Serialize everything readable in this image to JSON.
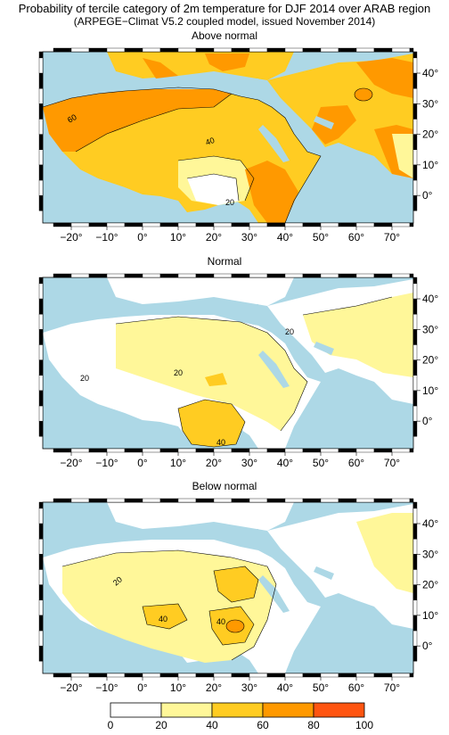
{
  "header": {
    "title": "Probability of tercile category of 2m temperature for DJF 2014 over ARAB region",
    "subtitle": "(ARPEGE−Climat V5.2 coupled model, issued November 2014)"
  },
  "panels": [
    {
      "title": "Above normal",
      "contour_labels": [
        "60",
        "40",
        "20"
      ]
    },
    {
      "title": "Normal",
      "contour_labels": [
        "20",
        "20",
        "20",
        "40"
      ]
    },
    {
      "title": "Below normal",
      "contour_labels": [
        "20",
        "40",
        "40"
      ]
    }
  ],
  "axes": {
    "lon_ticks": [
      "−20°",
      "−10°",
      "0°",
      "10°",
      "20°",
      "30°",
      "40°",
      "50°",
      "60°",
      "70°"
    ],
    "lat_ticks": [
      "40°",
      "30°",
      "20°",
      "10°",
      "0°"
    ]
  },
  "colorbar": {
    "ticks": [
      "0",
      "20",
      "40",
      "60",
      "80",
      "100"
    ],
    "colors": [
      "#ffffff",
      "#fff799",
      "#ffcc22",
      "#ff9900",
      "#ff5511"
    ]
  },
  "colors": {
    "ocean": "#add8e6",
    "land_white": "#ffffff",
    "land_20_40": "#fff799",
    "land_40_60": "#ffcc22",
    "land_60_80": "#ff9900",
    "land_80_100": "#ff5511"
  }
}
